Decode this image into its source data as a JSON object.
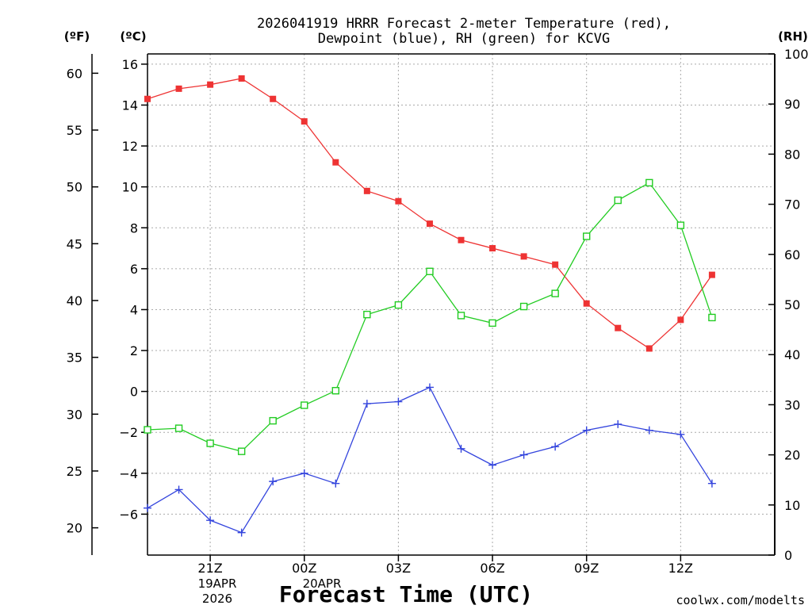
{
  "title_line1": "2026041919 HRRR Forecast 2-meter Temperature (red),",
  "title_line2": "Dewpoint (blue), RH (green) for KCVG",
  "unit_f": "(ºF)",
  "unit_c": "(ºC)",
  "unit_rh": "(RH)",
  "xlabel": "Forecast Time (UTC)",
  "watermark": "coolwx.com/modelts",
  "date_line1": "19APR",
  "date_line2": "2026",
  "date2_line1": "20APR",
  "colors": {
    "temp": "#ee3333",
    "dew": "#3344dd",
    "rh": "#22cc22",
    "watermark": "#cc2222"
  },
  "chart_data": {
    "type": "line",
    "title": "2026041919 HRRR Forecast 2-meter Temperature (red), Dewpoint (blue), RH (green) for KCVG",
    "xlabel": "Forecast Time (UTC)",
    "x_hours": [
      -2,
      -1,
      0,
      1,
      2,
      3,
      4,
      5,
      6,
      7,
      8,
      9,
      10,
      11,
      12,
      13,
      14,
      15,
      16,
      17,
      18
    ],
    "x_range": [
      -2,
      18
    ],
    "x_ticks": [
      0,
      3,
      6,
      9,
      12,
      15
    ],
    "x_tick_labels": [
      "21Z",
      "00Z",
      "03Z",
      "06Z",
      "09Z",
      "12Z"
    ],
    "left_axis_c": {
      "label": "(ºC)",
      "range": [
        -8,
        16.5
      ],
      "ticks": [
        -6,
        -4,
        -2,
        0,
        2,
        4,
        6,
        8,
        10,
        12,
        14,
        16
      ]
    },
    "left_axis_f": {
      "label": "(ºF)",
      "ticks": [
        20,
        25,
        30,
        35,
        40,
        45,
        50,
        55,
        60
      ]
    },
    "right_axis_rh": {
      "label": "(RH)",
      "range": [
        0,
        100
      ],
      "ticks": [
        0,
        10,
        20,
        30,
        40,
        50,
        60,
        70,
        80,
        90,
        100
      ]
    },
    "series": [
      {
        "name": "Temperature (°C)",
        "axis": "c",
        "color": "red",
        "marker": "filled-square",
        "values": [
          14.3,
          14.8,
          15.0,
          15.3,
          14.3,
          13.2,
          11.2,
          9.8,
          9.3,
          8.2,
          7.4,
          7.0,
          6.6,
          6.2,
          4.3,
          3.1,
          2.1,
          3.5,
          5.7
        ]
      },
      {
        "name": "Dewpoint (°C)",
        "axis": "c",
        "color": "blue",
        "marker": "plus",
        "values": [
          -5.7,
          -4.8,
          -6.3,
          -6.9,
          -4.4,
          -4.0,
          -4.5,
          -0.6,
          -0.5,
          0.2,
          -2.8,
          -3.6,
          -3.1,
          -2.7,
          -1.9,
          -1.6,
          -1.9,
          -2.1,
          -4.5
        ]
      },
      {
        "name": "RH (%)",
        "axis": "rh",
        "color": "green",
        "marker": "open-square",
        "values": [
          25,
          25.3,
          22.3,
          20.7,
          26.8,
          29.9,
          32.8,
          48,
          49.9,
          56.6,
          47.8,
          46.3,
          49.6,
          52.2,
          63.6,
          70.8,
          74.3,
          65.8,
          47.4
        ]
      }
    ]
  }
}
